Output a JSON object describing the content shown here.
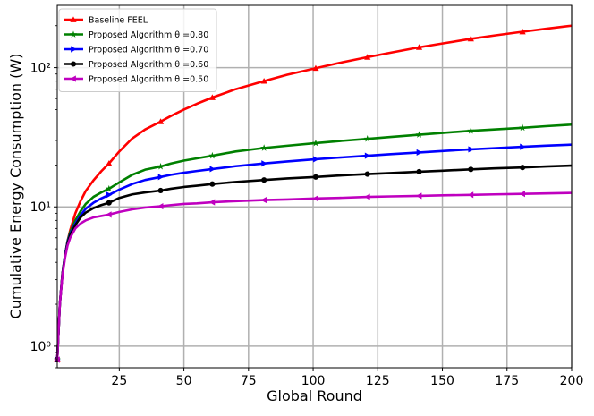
{
  "chart_data": {
    "type": "line",
    "xlabel": "Global Round",
    "ylabel": "Cumulative Energy Consumption (W)",
    "xlim": [
      1,
      200
    ],
    "ylim": [
      0.7,
      280
    ],
    "yscale": "log",
    "grid": true,
    "legend_position": "top-left",
    "x_ticks": [
      25,
      50,
      75,
      100,
      125,
      150,
      175,
      200
    ],
    "x_tick_labels": [
      "25",
      "50",
      "75",
      "100",
      "125",
      "150",
      "175",
      "200"
    ],
    "y_ticks": [
      1,
      10,
      100
    ],
    "y_tick_labels": [
      "10⁰",
      "10¹",
      "10²"
    ],
    "x": [
      1,
      2,
      3,
      4,
      5,
      6,
      8,
      10,
      12,
      15,
      18,
      21,
      25,
      30,
      35,
      41,
      45,
      50,
      55,
      61,
      70,
      81,
      90,
      101,
      110,
      121,
      130,
      141,
      150,
      161,
      170,
      181,
      190,
      200
    ],
    "series": [
      {
        "name": "Baseline FEEL",
        "color": "#ff0000",
        "marker": "triangle-up",
        "values": [
          0.8,
          2.0,
          3.3,
          4.5,
          5.7,
          6.8,
          9.0,
          11.0,
          13.0,
          15.5,
          18.0,
          20.5,
          25.0,
          31.0,
          36.0,
          41.0,
          45.0,
          50.0,
          55.0,
          61.0,
          70.0,
          80.0,
          89.0,
          99.0,
          108.0,
          119.0,
          128.0,
          140.0,
          149.0,
          161.0,
          170.0,
          181.0,
          190.0,
          200.0
        ]
      },
      {
        "name": "Proposed Algorithm θ =0.80",
        "color": "#008000",
        "marker": "star",
        "values": [
          0.8,
          2.0,
          3.3,
          4.5,
          5.7,
          6.6,
          8.0,
          9.3,
          10.5,
          11.8,
          12.7,
          13.5,
          15.0,
          17.0,
          18.5,
          19.5,
          20.5,
          21.5,
          22.3,
          23.3,
          25.0,
          26.5,
          27.5,
          28.7,
          29.7,
          30.8,
          31.8,
          33.0,
          34.0,
          35.2,
          36.0,
          37.0,
          38.0,
          39.0
        ]
      },
      {
        "name": "Proposed Algorithm θ =0.70",
        "color": "#0000ff",
        "marker": "triangle-right",
        "values": [
          0.8,
          2.0,
          3.3,
          4.5,
          5.6,
          6.4,
          7.6,
          8.7,
          9.7,
          10.7,
          11.5,
          12.2,
          13.3,
          14.6,
          15.6,
          16.4,
          17.0,
          17.6,
          18.1,
          18.7,
          19.6,
          20.5,
          21.2,
          22.0,
          22.6,
          23.3,
          23.9,
          24.6,
          25.2,
          25.9,
          26.4,
          27.0,
          27.5,
          28.0
        ]
      },
      {
        "name": "Proposed Algorithm θ =0.60",
        "color": "#000000",
        "marker": "circle",
        "values": [
          0.8,
          2.0,
          3.3,
          4.4,
          5.5,
          6.3,
          7.4,
          8.4,
          9.1,
          9.8,
          10.3,
          10.7,
          11.6,
          12.3,
          12.7,
          13.1,
          13.5,
          13.9,
          14.2,
          14.6,
          15.1,
          15.6,
          16.0,
          16.4,
          16.8,
          17.2,
          17.5,
          17.9,
          18.2,
          18.6,
          18.9,
          19.2,
          19.5,
          19.8
        ]
      },
      {
        "name": "Proposed Algorithm θ =0.50",
        "color": "#bf00bf",
        "marker": "triangle-left",
        "values": [
          0.8,
          2.0,
          3.2,
          4.3,
          5.3,
          6.0,
          7.0,
          7.6,
          8.0,
          8.4,
          8.6,
          8.8,
          9.2,
          9.6,
          9.9,
          10.1,
          10.3,
          10.5,
          10.6,
          10.8,
          11.0,
          11.2,
          11.3,
          11.5,
          11.6,
          11.8,
          11.9,
          12.0,
          12.1,
          12.2,
          12.3,
          12.4,
          12.5,
          12.6
        ]
      }
    ]
  }
}
